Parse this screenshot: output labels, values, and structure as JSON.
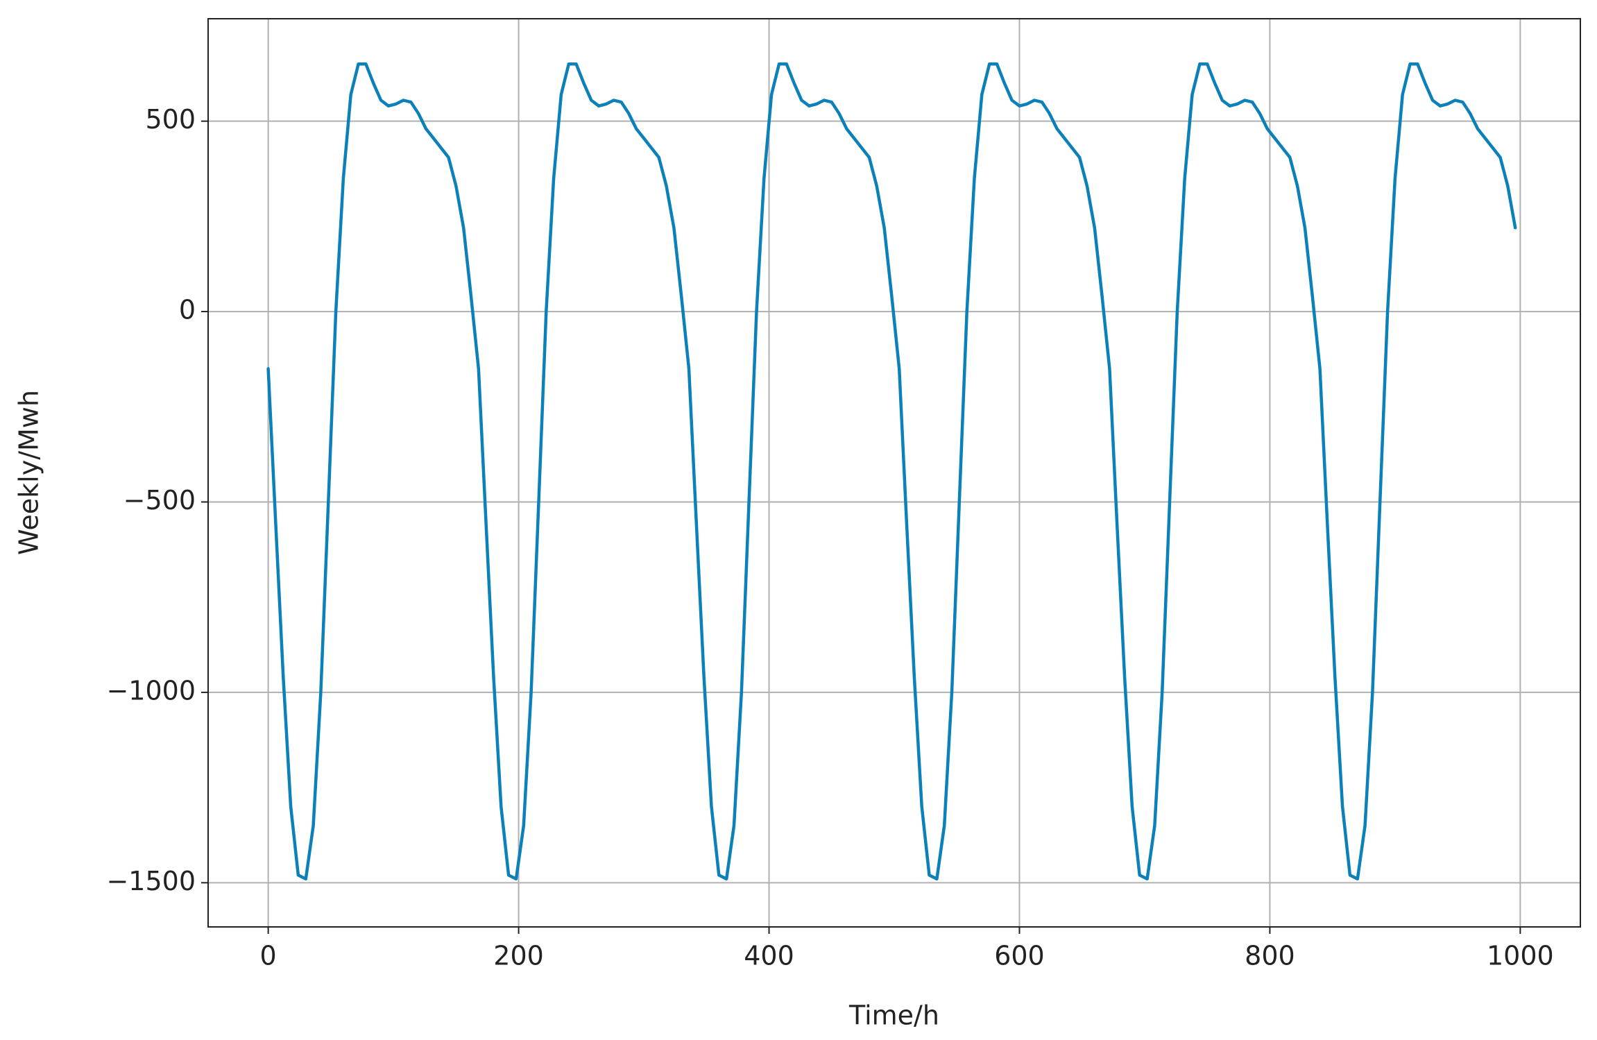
{
  "chart_data": {
    "type": "line",
    "xlabel": "Time/h",
    "ylabel": "Weekly/Mwh",
    "x": [
      0,
      6,
      12,
      18,
      24,
      30,
      36,
      42,
      48,
      54,
      60,
      66,
      72,
      78,
      84,
      90,
      96,
      102,
      108,
      114,
      120,
      126,
      132,
      138,
      144,
      150,
      156,
      162,
      168,
      174,
      180,
      186,
      192,
      198,
      204,
      210,
      216,
      222,
      228,
      234,
      240,
      246,
      252,
      258,
      264,
      270,
      276,
      282,
      288,
      294,
      300,
      306,
      312,
      318,
      324,
      330,
      336,
      342,
      348,
      354,
      360,
      366,
      372,
      378,
      384,
      390,
      396,
      402,
      408,
      414,
      420,
      426,
      432,
      438,
      444,
      450,
      456,
      462,
      468,
      474,
      480,
      486,
      492,
      498,
      504,
      510,
      516,
      522,
      528,
      534,
      540,
      546,
      552,
      558,
      564,
      570,
      576,
      582,
      588,
      594,
      600,
      606,
      612,
      618,
      624,
      630,
      636,
      642,
      648,
      654,
      660,
      666,
      672,
      678,
      684,
      690,
      696,
      702,
      708,
      714,
      720,
      726,
      732,
      738,
      744,
      750,
      756,
      762,
      768,
      774,
      780,
      786,
      792,
      798,
      804,
      810,
      816,
      822,
      828,
      834,
      840,
      846,
      852,
      858,
      864,
      870,
      876,
      882,
      888,
      894,
      900,
      906,
      912,
      918,
      924,
      930,
      936,
      942,
      948,
      954,
      960,
      966,
      972,
      978,
      984,
      990,
      996
    ],
    "series": [
      {
        "name": "Weekly",
        "color": "#0c80b8",
        "values": [
          -150,
          -560,
          -960,
          -1300,
          -1480,
          -1490,
          -1350,
          -1000,
          -500,
          0,
          350,
          570,
          650,
          650,
          600,
          555,
          540,
          545,
          555,
          550,
          520,
          480,
          455,
          430,
          405,
          330,
          220,
          40,
          -150,
          -560,
          -960,
          -1300,
          -1480,
          -1490,
          -1350,
          -1000,
          -500,
          0,
          350,
          570,
          650,
          650,
          600,
          555,
          540,
          545,
          555,
          550,
          520,
          480,
          455,
          430,
          405,
          330,
          220,
          40,
          -150,
          -560,
          -960,
          -1300,
          -1480,
          -1490,
          -1350,
          -1000,
          -500,
          0,
          350,
          570,
          650,
          650,
          600,
          555,
          540,
          545,
          555,
          550,
          520,
          480,
          455,
          430,
          405,
          330,
          220,
          40,
          -150,
          -560,
          -960,
          -1300,
          -1480,
          -1490,
          -1350,
          -1000,
          -500,
          0,
          350,
          570,
          650,
          650,
          600,
          555,
          540,
          545,
          555,
          550,
          520,
          480,
          455,
          430,
          405,
          330,
          220,
          40,
          -150,
          -560,
          -960,
          -1300,
          -1480,
          -1490,
          -1350,
          -1000,
          -500,
          0,
          350,
          570,
          650,
          650,
          600,
          555,
          540,
          545,
          555,
          550,
          520,
          480,
          455,
          430,
          405,
          330,
          220,
          40,
          -150,
          -560,
          -960,
          -1300,
          -1480,
          -1490,
          -1350,
          -1000,
          -500,
          0,
          350,
          570,
          650,
          650,
          600,
          555,
          540,
          545,
          555,
          550,
          520,
          480,
          455,
          430,
          405,
          330,
          220
        ]
      }
    ],
    "xlim": [
      -48,
      1048
    ],
    "xticks": [
      0,
      200,
      400,
      600,
      800,
      1000
    ],
    "ylim": [
      -1616,
      769
    ],
    "yticks": [
      {
        "value": -1500,
        "label": "−1500"
      },
      {
        "value": -1000,
        "label": "−1000"
      },
      {
        "value": -500,
        "label": "−500"
      },
      0,
      500
    ],
    "grid": true
  }
}
